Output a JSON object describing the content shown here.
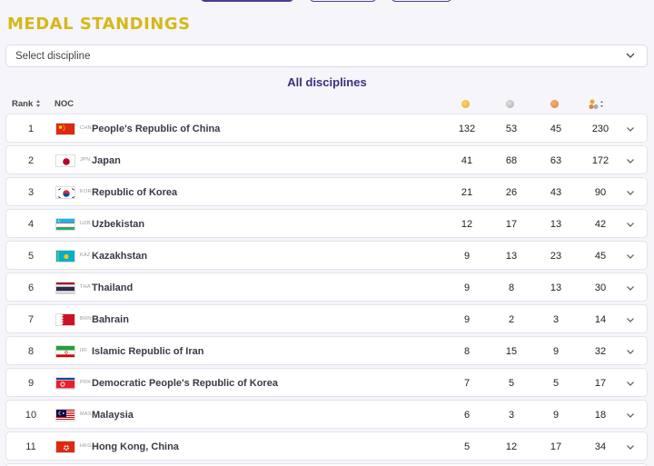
{
  "page": {
    "title": "MEDAL STANDINGS",
    "discipline_placeholder": "Select discipline",
    "section_title": "All disciplines"
  },
  "table": {
    "headers": {
      "rank": "Rank",
      "noc": "NOC"
    },
    "columns": [
      "gold-medal-icon",
      "silver-medal-icon",
      "bronze-medal-icon",
      "total-medals-icon"
    ],
    "rows": [
      {
        "rank": "1",
        "code": "CHN",
        "name": "People's Republic of China",
        "gold": "132",
        "silver": "53",
        "bronze": "45",
        "total": "230"
      },
      {
        "rank": "2",
        "code": "JPN",
        "name": "Japan",
        "gold": "41",
        "silver": "68",
        "bronze": "63",
        "total": "172"
      },
      {
        "rank": "3",
        "code": "KOR",
        "name": "Republic of Korea",
        "gold": "21",
        "silver": "26",
        "bronze": "43",
        "total": "90"
      },
      {
        "rank": "4",
        "code": "UZB",
        "name": "Uzbekistan",
        "gold": "12",
        "silver": "17",
        "bronze": "13",
        "total": "42"
      },
      {
        "rank": "5",
        "code": "KAZ",
        "name": "Kazakhstan",
        "gold": "9",
        "silver": "13",
        "bronze": "23",
        "total": "45"
      },
      {
        "rank": "6",
        "code": "THA",
        "name": "Thailand",
        "gold": "9",
        "silver": "8",
        "bronze": "13",
        "total": "30"
      },
      {
        "rank": "7",
        "code": "BRN",
        "name": "Bahrain",
        "gold": "9",
        "silver": "2",
        "bronze": "3",
        "total": "14"
      },
      {
        "rank": "8",
        "code": "IRI",
        "name": "Islamic Republic of Iran",
        "gold": "8",
        "silver": "15",
        "bronze": "9",
        "total": "32"
      },
      {
        "rank": "9",
        "code": "PRK",
        "name": "Democratic People's Republic of Korea",
        "gold": "7",
        "silver": "5",
        "bronze": "5",
        "total": "17"
      },
      {
        "rank": "10",
        "code": "MAS",
        "name": "Malaysia",
        "gold": "6",
        "silver": "3",
        "bronze": "9",
        "total": "18"
      },
      {
        "rank": "11",
        "code": "HKG",
        "name": "Hong Kong, China",
        "gold": "5",
        "silver": "12",
        "bronze": "17",
        "total": "34"
      }
    ]
  },
  "colors": {
    "title": "#d7b818",
    "accent": "#3b2f7e",
    "gold": "#e9a82a",
    "silver": "#a9a9a9",
    "bronze": "#d4843a"
  }
}
